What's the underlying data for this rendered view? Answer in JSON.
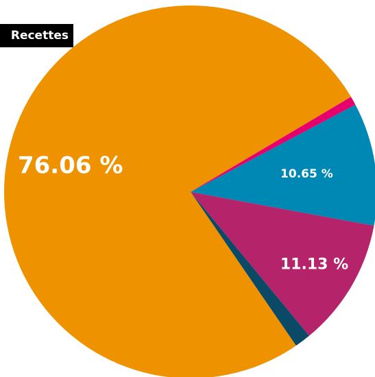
{
  "chart_data": {
    "type": "pie",
    "title": "Recettes",
    "slices": [
      {
        "value": 10.65,
        "label": "10.65 %",
        "color": "#0088b5"
      },
      {
        "value": 11.13,
        "label": "11.13 %",
        "color": "#b5236b"
      },
      {
        "value": 1.4,
        "label": "",
        "color": "#0a4a66"
      },
      {
        "value": 76.06,
        "label": "76.06 %",
        "color": "#ee9200"
      },
      {
        "value": 0.76,
        "label": "",
        "color": "#e5006e"
      }
    ]
  }
}
